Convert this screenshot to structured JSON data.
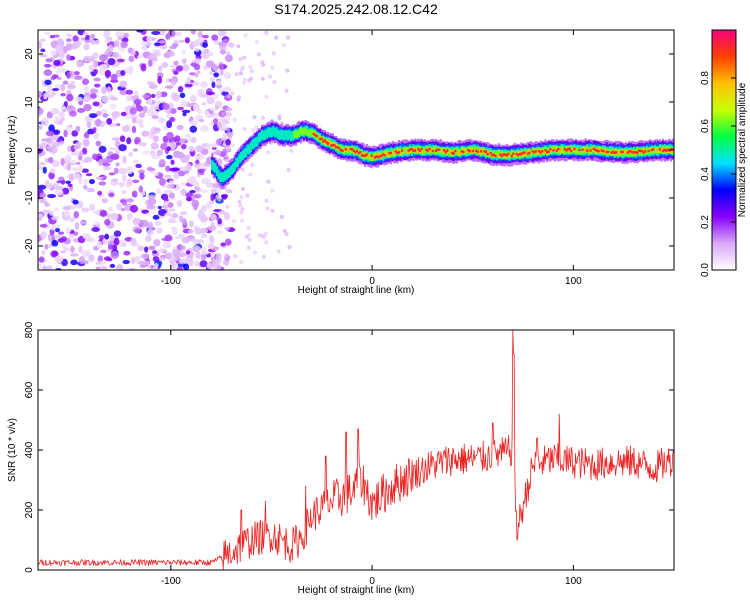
{
  "figure_title": "S174.2025.242.08.12.C42",
  "chart_data": [
    {
      "type": "heatmap",
      "id": "spectrogram",
      "title": "",
      "xlabel": "Height of straight line (km)",
      "ylabel": "Frequency (Hz)",
      "xlim": [
        -166,
        150
      ],
      "ylim": [
        -25,
        25
      ],
      "x_ticks": [
        -100,
        0,
        100
      ],
      "y_ticks": [
        -20,
        -10,
        0,
        10,
        20
      ],
      "ridge": {
        "x": [
          -80,
          -75,
          -70,
          -65,
          -60,
          -55,
          -50,
          -45,
          -40,
          -35,
          -30,
          -25,
          -20,
          -15,
          -10,
          -5,
          0,
          5,
          10,
          20,
          30,
          40,
          50,
          60,
          65,
          70,
          80,
          90,
          100,
          110,
          120,
          130,
          140,
          150
        ],
        "freq": [
          -3,
          -6,
          -4,
          -1,
          1,
          3,
          4,
          3,
          3,
          4,
          3.5,
          2,
          1,
          0,
          0,
          -1,
          -1.5,
          -1,
          -0.5,
          0,
          0,
          -0.5,
          0,
          -1,
          -1,
          -1,
          -0.5,
          0,
          0,
          0,
          -0.5,
          -0.5,
          0,
          0
        ]
      },
      "noise_region_x": [
        -166,
        -80
      ],
      "colorbar": {
        "label": "Normalized spectral amplitude",
        "range": [
          0.0,
          1.0
        ],
        "ticks": [
          "0.0",
          "0.2",
          "0.4",
          "0.6",
          "0.8"
        ],
        "colors": [
          "#ffffff",
          "#d8a8f8",
          "#8800ff",
          "#0000ff",
          "#00e0ff",
          "#00ff40",
          "#c8ff00",
          "#ffc000",
          "#ff4000",
          "#ff0080"
        ]
      }
    },
    {
      "type": "line",
      "id": "snr",
      "title": "",
      "xlabel": "Height of straight line (km)",
      "ylabel": "SNR (10 * v/v)",
      "xlim": [
        -166,
        150
      ],
      "ylim": [
        0,
        800
      ],
      "x_ticks": [
        -100,
        0,
        100
      ],
      "y_ticks": [
        0,
        200,
        400,
        600,
        800
      ],
      "line_color": "#ee2222",
      "series": [
        {
          "name": "SNR",
          "x": [
            -166,
            -80,
            -75,
            -70,
            -60,
            -50,
            -40,
            -35,
            -30,
            -20,
            -10,
            -5,
            0,
            10,
            20,
            30,
            40,
            50,
            60,
            70,
            72,
            80,
            90,
            100,
            110,
            120,
            130,
            140,
            150
          ],
          "values": [
            25,
            25,
            40,
            60,
            100,
            120,
            80,
            110,
            180,
            230,
            260,
            300,
            220,
            280,
            320,
            350,
            370,
            370,
            380,
            400,
            130,
            350,
            370,
            360,
            350,
            360,
            360,
            340,
            370
          ],
          "peaks": [
            [
              -65,
              200
            ],
            [
              -53,
              230
            ],
            [
              -33,
              280
            ],
            [
              -23,
              380
            ],
            [
              -13,
              460
            ],
            [
              -7,
              470
            ],
            [
              60,
              490
            ],
            [
              70,
              800
            ],
            [
              70.5,
              720
            ],
            [
              82,
              440
            ],
            [
              93,
              520
            ]
          ]
        }
      ]
    }
  ]
}
